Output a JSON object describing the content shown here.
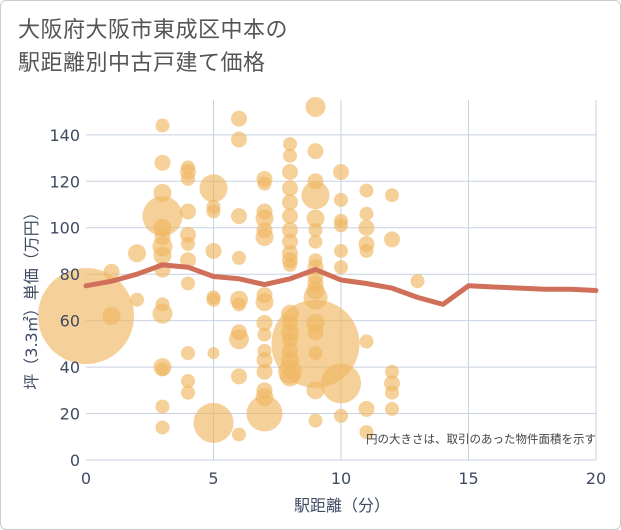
{
  "title": {
    "line1": "大阪府大阪市東成区中本の",
    "line2": "駅距離別中古戸建て価格"
  },
  "colors": {
    "bubble": "#f0b762",
    "line": "#d0705a",
    "grid": "#c7d2e2",
    "plot_bg": "#ffffff",
    "axis_text": "#3f4a63"
  },
  "chart_data": {
    "type": "scatter",
    "xlabel": "駅距離（分）",
    "ylabel": "坪（3.3㎡）単価（万円）",
    "xlim": [
      0,
      20
    ],
    "ylim": [
      0,
      155
    ],
    "x_ticks": [
      0,
      5,
      10,
      15,
      20
    ],
    "y_ticks": [
      0,
      20,
      40,
      60,
      80,
      100,
      120,
      140
    ],
    "note": "円の大きさは、取引のあった物件面積を示す",
    "average_line": {
      "x": [
        0,
        1,
        2,
        3,
        4,
        5,
        6,
        7,
        8,
        9,
        10,
        11,
        12,
        13,
        14,
        15,
        16,
        17,
        18,
        19,
        20
      ],
      "y": [
        75,
        77,
        80,
        84,
        83,
        79,
        78,
        75.5,
        78,
        82,
        77.5,
        76,
        74,
        70,
        67,
        75,
        74.5,
        74,
        73.5,
        73.5,
        73
      ]
    },
    "points": [
      {
        "x": 0,
        "y": 62,
        "s": 48
      },
      {
        "x": 1,
        "y": 81,
        "s": 8
      },
      {
        "x": 1,
        "y": 62,
        "s": 9
      },
      {
        "x": 2,
        "y": 89,
        "s": 9
      },
      {
        "x": 2,
        "y": 69,
        "s": 7
      },
      {
        "x": 3,
        "y": 144,
        "s": 7
      },
      {
        "x": 3,
        "y": 128,
        "s": 8
      },
      {
        "x": 3,
        "y": 115,
        "s": 9
      },
      {
        "x": 3,
        "y": 105,
        "s": 20
      },
      {
        "x": 3,
        "y": 100,
        "s": 9
      },
      {
        "x": 3,
        "y": 96,
        "s": 8
      },
      {
        "x": 3,
        "y": 92,
        "s": 10
      },
      {
        "x": 3,
        "y": 88,
        "s": 9
      },
      {
        "x": 3,
        "y": 82,
        "s": 8
      },
      {
        "x": 3,
        "y": 67,
        "s": 7
      },
      {
        "x": 3,
        "y": 63,
        "s": 10
      },
      {
        "x": 3,
        "y": 40,
        "s": 9
      },
      {
        "x": 3,
        "y": 39,
        "s": 7
      },
      {
        "x": 3,
        "y": 23,
        "s": 7
      },
      {
        "x": 3,
        "y": 14,
        "s": 7
      },
      {
        "x": 4,
        "y": 126,
        "s": 7
      },
      {
        "x": 4,
        "y": 124,
        "s": 8
      },
      {
        "x": 4,
        "y": 121,
        "s": 7
      },
      {
        "x": 4,
        "y": 107,
        "s": 8
      },
      {
        "x": 4,
        "y": 97,
        "s": 8
      },
      {
        "x": 4,
        "y": 93,
        "s": 7
      },
      {
        "x": 4,
        "y": 86,
        "s": 8
      },
      {
        "x": 4,
        "y": 76,
        "s": 7
      },
      {
        "x": 4,
        "y": 46,
        "s": 7
      },
      {
        "x": 4,
        "y": 34,
        "s": 7
      },
      {
        "x": 4,
        "y": 29,
        "s": 7
      },
      {
        "x": 5,
        "y": 117,
        "s": 14
      },
      {
        "x": 5,
        "y": 109,
        "s": 7
      },
      {
        "x": 5,
        "y": 107,
        "s": 7
      },
      {
        "x": 5,
        "y": 90,
        "s": 8
      },
      {
        "x": 5,
        "y": 70,
        "s": 7
      },
      {
        "x": 5,
        "y": 69,
        "s": 7
      },
      {
        "x": 5,
        "y": 46,
        "s": 6
      },
      {
        "x": 5,
        "y": 16,
        "s": 20
      },
      {
        "x": 6,
        "y": 147,
        "s": 8
      },
      {
        "x": 6,
        "y": 138,
        "s": 8
      },
      {
        "x": 6,
        "y": 105,
        "s": 8
      },
      {
        "x": 6,
        "y": 87,
        "s": 7
      },
      {
        "x": 6,
        "y": 69,
        "s": 9
      },
      {
        "x": 6,
        "y": 67,
        "s": 7
      },
      {
        "x": 6,
        "y": 55,
        "s": 8
      },
      {
        "x": 6,
        "y": 52,
        "s": 10
      },
      {
        "x": 6,
        "y": 36,
        "s": 8
      },
      {
        "x": 6,
        "y": 11,
        "s": 7
      },
      {
        "x": 7,
        "y": 121,
        "s": 8
      },
      {
        "x": 7,
        "y": 119,
        "s": 7
      },
      {
        "x": 7,
        "y": 107,
        "s": 8
      },
      {
        "x": 7,
        "y": 104,
        "s": 9
      },
      {
        "x": 7,
        "y": 99,
        "s": 8
      },
      {
        "x": 7,
        "y": 96,
        "s": 9
      },
      {
        "x": 7,
        "y": 71,
        "s": 8
      },
      {
        "x": 7,
        "y": 68,
        "s": 9
      },
      {
        "x": 7,
        "y": 59,
        "s": 8
      },
      {
        "x": 7,
        "y": 54,
        "s": 7
      },
      {
        "x": 7,
        "y": 47,
        "s": 7
      },
      {
        "x": 7,
        "y": 43,
        "s": 8
      },
      {
        "x": 7,
        "y": 38,
        "s": 8
      },
      {
        "x": 7,
        "y": 30,
        "s": 8
      },
      {
        "x": 7,
        "y": 27,
        "s": 9
      },
      {
        "x": 7,
        "y": 20,
        "s": 18
      },
      {
        "x": 8,
        "y": 136,
        "s": 7
      },
      {
        "x": 8,
        "y": 131,
        "s": 7
      },
      {
        "x": 8,
        "y": 124,
        "s": 8
      },
      {
        "x": 8,
        "y": 117,
        "s": 8
      },
      {
        "x": 8,
        "y": 111,
        "s": 8
      },
      {
        "x": 8,
        "y": 105,
        "s": 8
      },
      {
        "x": 8,
        "y": 99,
        "s": 8
      },
      {
        "x": 8,
        "y": 94,
        "s": 8
      },
      {
        "x": 8,
        "y": 89,
        "s": 8
      },
      {
        "x": 8,
        "y": 86,
        "s": 8
      },
      {
        "x": 8,
        "y": 84,
        "s": 7
      },
      {
        "x": 8,
        "y": 63,
        "s": 9
      },
      {
        "x": 8,
        "y": 59,
        "s": 8
      },
      {
        "x": 8,
        "y": 55,
        "s": 9
      },
      {
        "x": 8,
        "y": 52,
        "s": 8
      },
      {
        "x": 8,
        "y": 47,
        "s": 8
      },
      {
        "x": 8,
        "y": 43,
        "s": 9
      },
      {
        "x": 8,
        "y": 38,
        "s": 12
      },
      {
        "x": 8,
        "y": 36,
        "s": 10
      },
      {
        "x": 9,
        "y": 152,
        "s": 10
      },
      {
        "x": 9,
        "y": 133,
        "s": 8
      },
      {
        "x": 9,
        "y": 120,
        "s": 8
      },
      {
        "x": 9,
        "y": 114,
        "s": 14
      },
      {
        "x": 9,
        "y": 104,
        "s": 9
      },
      {
        "x": 9,
        "y": 99,
        "s": 7
      },
      {
        "x": 9,
        "y": 94,
        "s": 7
      },
      {
        "x": 9,
        "y": 86,
        "s": 7
      },
      {
        "x": 9,
        "y": 83,
        "s": 8
      },
      {
        "x": 9,
        "y": 79,
        "s": 8
      },
      {
        "x": 9,
        "y": 76,
        "s": 8
      },
      {
        "x": 9,
        "y": 73,
        "s": 9
      },
      {
        "x": 9,
        "y": 70,
        "s": 12
      },
      {
        "x": 9,
        "y": 59,
        "s": 9
      },
      {
        "x": 9,
        "y": 55,
        "s": 8
      },
      {
        "x": 9,
        "y": 50,
        "s": 44
      },
      {
        "x": 9,
        "y": 46,
        "s": 7
      },
      {
        "x": 9,
        "y": 30,
        "s": 9
      },
      {
        "x": 9,
        "y": 17,
        "s": 7
      },
      {
        "x": 10,
        "y": 124,
        "s": 8
      },
      {
        "x": 10,
        "y": 112,
        "s": 7
      },
      {
        "x": 10,
        "y": 103,
        "s": 7
      },
      {
        "x": 10,
        "y": 101,
        "s": 7
      },
      {
        "x": 10,
        "y": 90,
        "s": 7
      },
      {
        "x": 10,
        "y": 83,
        "s": 7
      },
      {
        "x": 10,
        "y": 33,
        "s": 20
      },
      {
        "x": 10,
        "y": 19,
        "s": 7
      },
      {
        "x": 11,
        "y": 116,
        "s": 7
      },
      {
        "x": 11,
        "y": 106,
        "s": 7
      },
      {
        "x": 11,
        "y": 100,
        "s": 8
      },
      {
        "x": 11,
        "y": 93,
        "s": 8
      },
      {
        "x": 11,
        "y": 90,
        "s": 7
      },
      {
        "x": 11,
        "y": 51,
        "s": 7
      },
      {
        "x": 11,
        "y": 22,
        "s": 8
      },
      {
        "x": 11,
        "y": 12,
        "s": 7
      },
      {
        "x": 12,
        "y": 114,
        "s": 7
      },
      {
        "x": 12,
        "y": 95,
        "s": 8
      },
      {
        "x": 12,
        "y": 38,
        "s": 7
      },
      {
        "x": 12,
        "y": 33,
        "s": 8
      },
      {
        "x": 12,
        "y": 29,
        "s": 7
      },
      {
        "x": 12,
        "y": 22,
        "s": 7
      },
      {
        "x": 13,
        "y": 77,
        "s": 7
      }
    ]
  }
}
